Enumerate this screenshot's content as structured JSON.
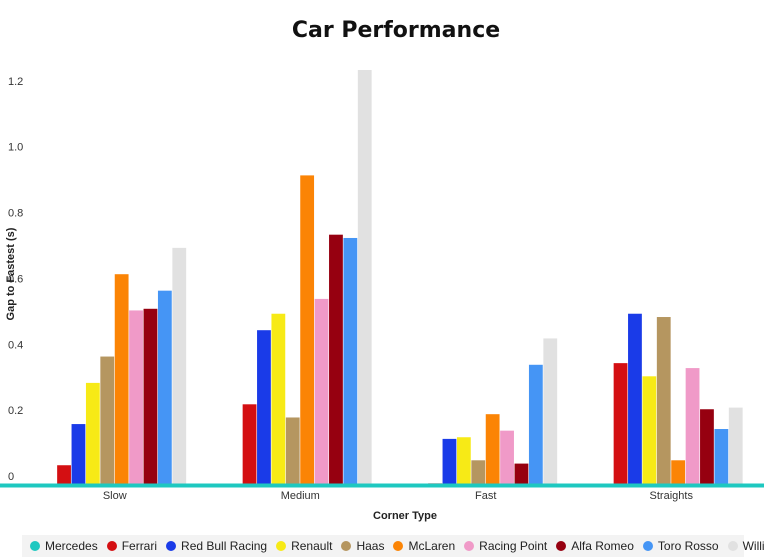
{
  "chart_data": {
    "type": "bar",
    "title": "Car Performance",
    "xlabel": "Corner Type",
    "ylabel": "Gap to Fastest (s)",
    "categories": [
      "Slow",
      "Medium",
      "Fast",
      "Straights"
    ],
    "ylim": [
      0,
      1.26
    ],
    "yticks": [
      "0",
      "0.2",
      "0.4",
      "0.6",
      "0.8",
      "1.0",
      "1.2"
    ],
    "ytick_values": [
      0,
      0.2,
      0.4,
      0.6,
      0.8,
      1.0,
      1.2
    ],
    "legend_position": "bottom",
    "series": [
      {
        "name": "Mercedes",
        "color": "#1ec8c0",
        "values": [
          0,
          0,
          0,
          0
        ]
      },
      {
        "name": "Ferrari",
        "color": "#d40f12",
        "values": [
          0.06,
          0.245,
          0.005,
          0.37
        ]
      },
      {
        "name": "Red Bull Racing",
        "color": "#1a3be8",
        "values": [
          0.185,
          0.47,
          0.14,
          0.52
        ]
      },
      {
        "name": "Renault",
        "color": "#f7ea16",
        "values": [
          0.31,
          0.52,
          0.145,
          0.33
        ]
      },
      {
        "name": "Haas",
        "color": "#b59660",
        "values": [
          0.39,
          0.205,
          0.075,
          0.51
        ]
      },
      {
        "name": "McLaren",
        "color": "#fb8405",
        "values": [
          0.64,
          0.94,
          0.215,
          0.075
        ]
      },
      {
        "name": "Racing Point",
        "color": "#f09ac8",
        "values": [
          0.53,
          0.565,
          0.165,
          0.355
        ]
      },
      {
        "name": "Alfa Romeo",
        "color": "#960010",
        "values": [
          0.535,
          0.76,
          0.065,
          0.23
        ]
      },
      {
        "name": "Toro Rosso",
        "color": "#4595f5",
        "values": [
          0.59,
          0.75,
          0.365,
          0.17
        ]
      },
      {
        "name": "Williams",
        "color": "#e1e1e1",
        "values": [
          0.72,
          1.26,
          0.445,
          0.235
        ]
      }
    ]
  }
}
